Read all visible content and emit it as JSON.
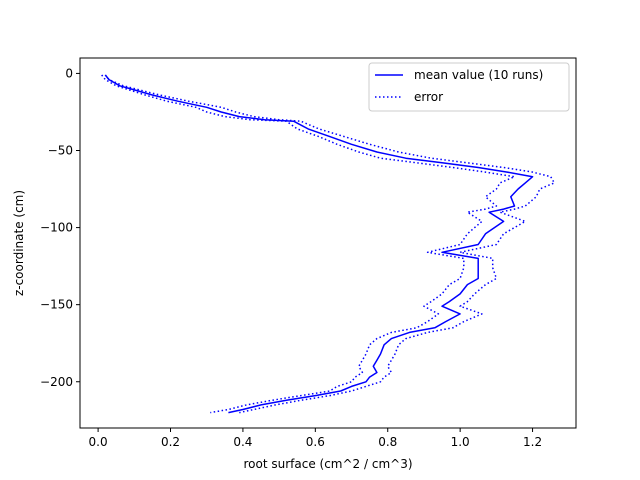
{
  "chart_data": {
    "type": "line",
    "xlabel": "root surface (cm^2 / cm^3)",
    "ylabel": "z-coordinate (cm)",
    "xlim": [
      -0.05,
      1.32
    ],
    "ylim": [
      -230,
      10
    ],
    "xticks": [
      0.0,
      0.2,
      0.4,
      0.6,
      0.8,
      1.0,
      1.2
    ],
    "yticks": [
      0,
      -50,
      -100,
      -150,
      -200
    ],
    "xtick_labels": [
      "0.0",
      "0.2",
      "0.4",
      "0.6",
      "0.8",
      "1.0",
      "1.2"
    ],
    "ytick_labels": [
      "0",
      "−50",
      "−100",
      "−150",
      "−200"
    ],
    "grid": false,
    "legend_position": "upper right",
    "series": [
      {
        "name": "mean value (10 runs)",
        "style": "solid",
        "color": "#0000ff",
        "points": [
          [
            0.02,
            -1
          ],
          [
            0.03,
            -4
          ],
          [
            0.06,
            -8
          ],
          [
            0.15,
            -14
          ],
          [
            0.22,
            -18
          ],
          [
            0.3,
            -22
          ],
          [
            0.34,
            -25
          ],
          [
            0.39,
            -28
          ],
          [
            0.46,
            -30
          ],
          [
            0.54,
            -31
          ],
          [
            0.58,
            -36
          ],
          [
            0.64,
            -41
          ],
          [
            0.7,
            -46
          ],
          [
            0.77,
            -51
          ],
          [
            0.85,
            -55
          ],
          [
            0.95,
            -58
          ],
          [
            1.05,
            -61
          ],
          [
            1.13,
            -64
          ],
          [
            1.2,
            -67
          ],
          [
            1.18,
            -71
          ],
          [
            1.16,
            -75
          ],
          [
            1.14,
            -80
          ],
          [
            1.15,
            -86
          ],
          [
            1.12,
            -88
          ],
          [
            1.08,
            -90
          ],
          [
            1.12,
            -96
          ],
          [
            1.07,
            -104
          ],
          [
            1.05,
            -111
          ],
          [
            0.95,
            -116
          ],
          [
            1.05,
            -120
          ],
          [
            1.05,
            -126
          ],
          [
            1.05,
            -133
          ],
          [
            1.02,
            -137
          ],
          [
            1.0,
            -143
          ],
          [
            0.97,
            -148
          ],
          [
            0.95,
            -151
          ],
          [
            1.0,
            -156
          ],
          [
            0.96,
            -161
          ],
          [
            0.93,
            -165
          ],
          [
            0.86,
            -168
          ],
          [
            0.81,
            -172
          ],
          [
            0.79,
            -176
          ],
          [
            0.78,
            -182
          ],
          [
            0.77,
            -186
          ],
          [
            0.76,
            -190
          ],
          [
            0.77,
            -194
          ],
          [
            0.75,
            -197
          ],
          [
            0.74,
            -200
          ],
          [
            0.7,
            -203
          ],
          [
            0.67,
            -206
          ],
          [
            0.6,
            -209
          ],
          [
            0.52,
            -212
          ],
          [
            0.45,
            -215
          ],
          [
            0.4,
            -218
          ],
          [
            0.36,
            -220
          ]
        ]
      },
      {
        "name": "error",
        "style": "dotted",
        "color": "#0000ff",
        "points": [
          [
            0.02,
            -1
          ],
          [
            0.03,
            -4
          ],
          [
            0.07,
            -8
          ],
          [
            0.17,
            -14
          ],
          [
            0.25,
            -18
          ],
          [
            0.34,
            -22
          ],
          [
            0.38,
            -25
          ],
          [
            0.43,
            -28
          ],
          [
            0.5,
            -30
          ],
          [
            0.56,
            -31
          ],
          [
            0.61,
            -36
          ],
          [
            0.68,
            -41
          ],
          [
            0.75,
            -46
          ],
          [
            0.83,
            -51
          ],
          [
            0.92,
            -55
          ],
          [
            1.02,
            -58
          ],
          [
            1.12,
            -61
          ],
          [
            1.2,
            -64
          ],
          [
            1.25,
            -67
          ],
          [
            1.26,
            -71
          ],
          [
            1.22,
            -75
          ],
          [
            1.21,
            -80
          ],
          [
            1.18,
            -86
          ],
          [
            1.15,
            -88
          ],
          [
            1.11,
            -90
          ],
          [
            1.18,
            -96
          ],
          [
            1.12,
            -104
          ],
          [
            1.1,
            -111
          ],
          [
            1.0,
            -116
          ],
          [
            1.09,
            -120
          ],
          [
            1.09,
            -126
          ],
          [
            1.1,
            -133
          ],
          [
            1.07,
            -137
          ],
          [
            1.04,
            -143
          ],
          [
            1.02,
            -148
          ],
          [
            1.0,
            -151
          ],
          [
            1.06,
            -156
          ],
          [
            1.01,
            -161
          ],
          [
            0.98,
            -165
          ],
          [
            0.91,
            -168
          ],
          [
            0.85,
            -172
          ],
          [
            0.83,
            -176
          ],
          [
            0.82,
            -182
          ],
          [
            0.81,
            -186
          ],
          [
            0.8,
            -190
          ],
          [
            0.81,
            -194
          ],
          [
            0.79,
            -197
          ],
          [
            0.78,
            -200
          ],
          [
            0.74,
            -203
          ],
          [
            0.7,
            -206
          ],
          [
            0.64,
            -209
          ],
          [
            0.56,
            -212
          ],
          [
            0.49,
            -215
          ],
          [
            0.43,
            -218
          ],
          [
            0.39,
            -220
          ]
        ]
      },
      {
        "name": "",
        "style": "dotted",
        "color": "#0000ff",
        "points": [
          [
            0.01,
            -1
          ],
          [
            0.02,
            -4
          ],
          [
            0.05,
            -8
          ],
          [
            0.13,
            -14
          ],
          [
            0.19,
            -18
          ],
          [
            0.27,
            -22
          ],
          [
            0.3,
            -25
          ],
          [
            0.35,
            -28
          ],
          [
            0.42,
            -30
          ],
          [
            0.52,
            -31
          ],
          [
            0.55,
            -36
          ],
          [
            0.61,
            -41
          ],
          [
            0.66,
            -46
          ],
          [
            0.72,
            -51
          ],
          [
            0.78,
            -55
          ],
          [
            0.88,
            -58
          ],
          [
            0.98,
            -61
          ],
          [
            1.07,
            -64
          ],
          [
            1.15,
            -67
          ],
          [
            1.11,
            -71
          ],
          [
            1.1,
            -75
          ],
          [
            1.07,
            -80
          ],
          [
            1.1,
            -86
          ],
          [
            1.07,
            -88
          ],
          [
            1.02,
            -90
          ],
          [
            1.06,
            -96
          ],
          [
            1.02,
            -104
          ],
          [
            1.0,
            -111
          ],
          [
            0.91,
            -116
          ],
          [
            1.01,
            -120
          ],
          [
            1.01,
            -126
          ],
          [
            1.0,
            -133
          ],
          [
            0.97,
            -137
          ],
          [
            0.95,
            -143
          ],
          [
            0.92,
            -148
          ],
          [
            0.9,
            -151
          ],
          [
            0.94,
            -156
          ],
          [
            0.91,
            -161
          ],
          [
            0.88,
            -165
          ],
          [
            0.81,
            -168
          ],
          [
            0.77,
            -172
          ],
          [
            0.75,
            -176
          ],
          [
            0.74,
            -182
          ],
          [
            0.73,
            -186
          ],
          [
            0.72,
            -190
          ],
          [
            0.73,
            -194
          ],
          [
            0.71,
            -197
          ],
          [
            0.7,
            -200
          ],
          [
            0.66,
            -203
          ],
          [
            0.64,
            -206
          ],
          [
            0.56,
            -209
          ],
          [
            0.48,
            -212
          ],
          [
            0.41,
            -215
          ],
          [
            0.36,
            -218
          ],
          [
            0.31,
            -220
          ]
        ]
      }
    ],
    "legend": [
      {
        "label": "mean value (10 runs)",
        "style": "solid",
        "color": "#0000ff"
      },
      {
        "label": "error",
        "style": "dotted",
        "color": "#0000ff"
      }
    ]
  }
}
